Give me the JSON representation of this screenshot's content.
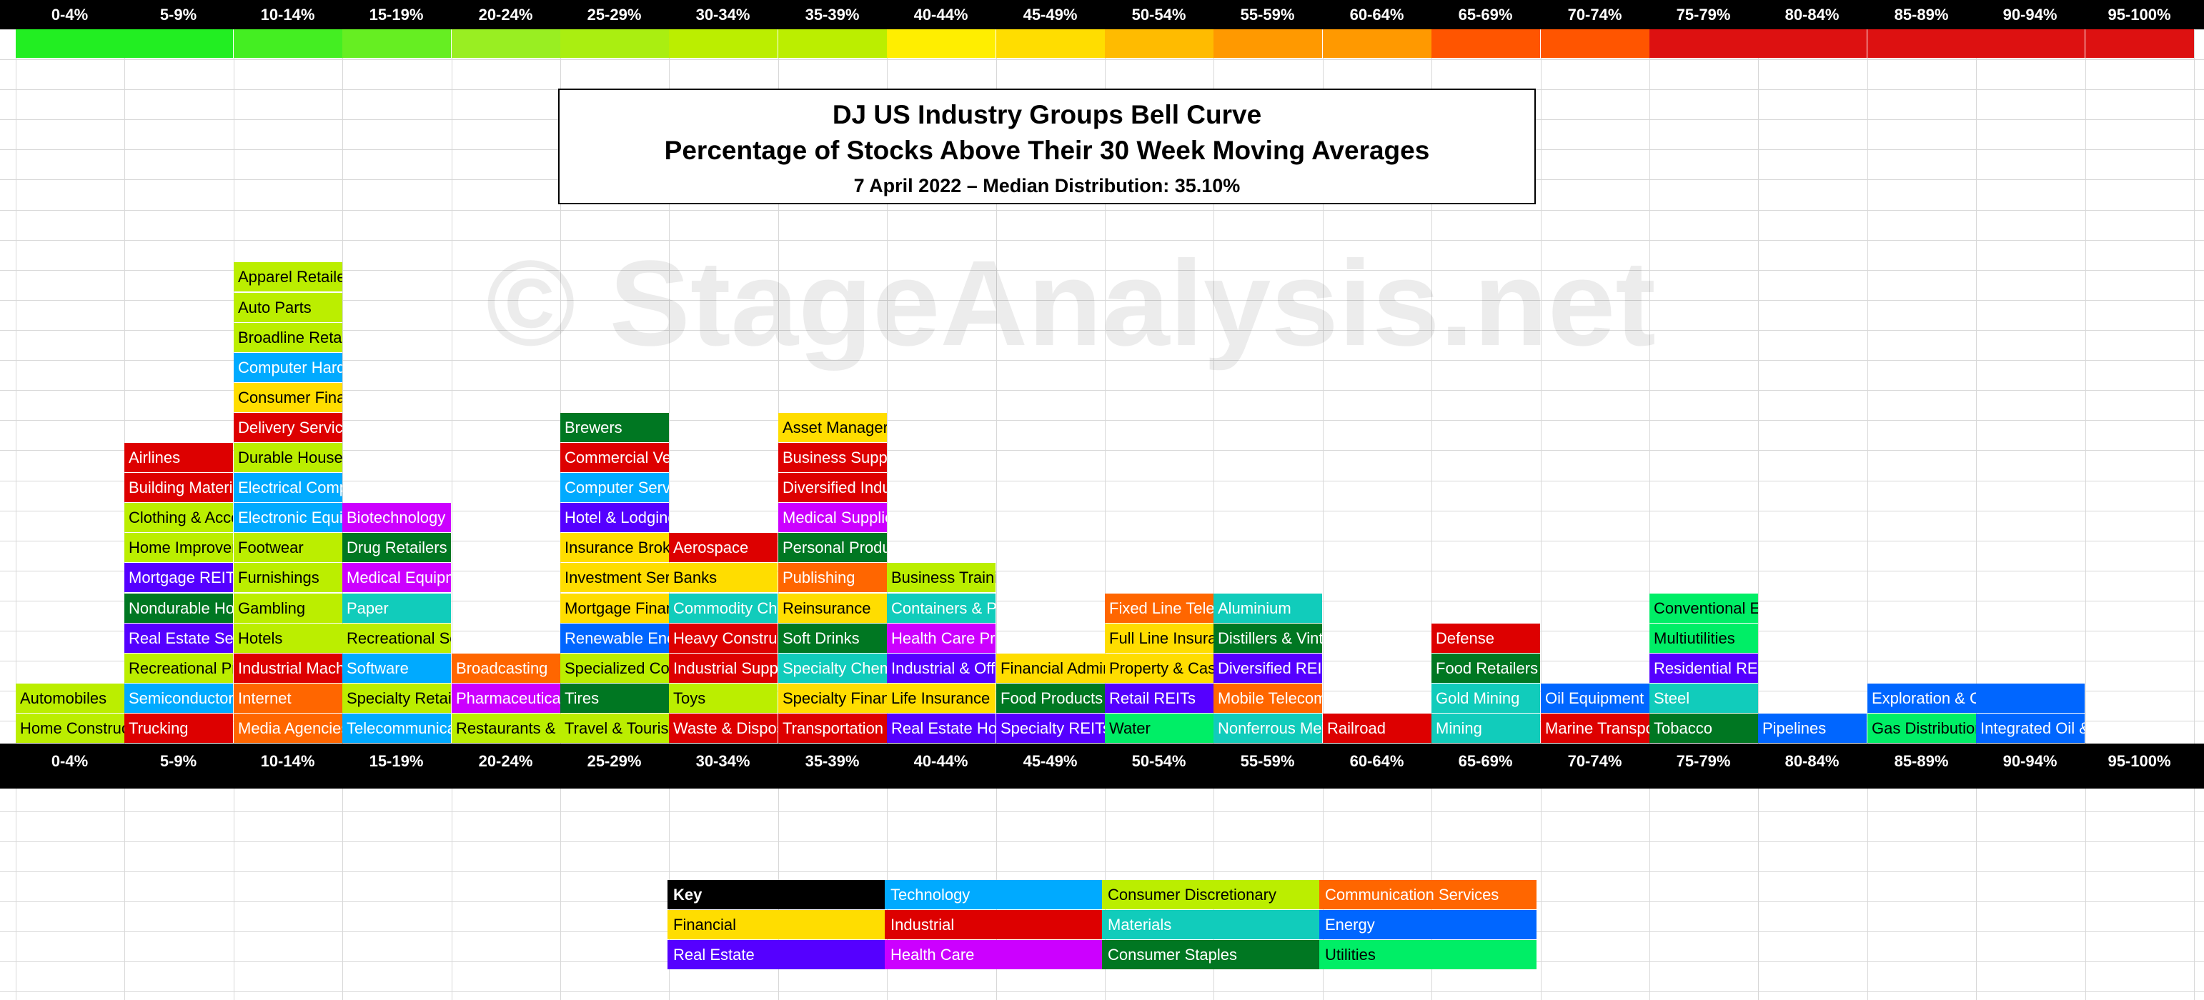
{
  "chart_data": {
    "type": "table",
    "title": "DJ US Industry Groups Bell Curve",
    "subtitle": "Percentage of Stocks Above Their 30 Week Moving Averages",
    "date_line": "7 April 2022 – Median Distribution: 35.10%",
    "watermark": "© StageAnalysis.net",
    "buckets": [
      "0-4%",
      "5-9%",
      "10-14%",
      "15-19%",
      "20-24%",
      "25-29%",
      "30-34%",
      "35-39%",
      "40-44%",
      "45-49%",
      "50-54%",
      "55-59%",
      "60-64%",
      "65-69%",
      "70-74%",
      "75-79%",
      "80-84%",
      "85-89%",
      "90-94%",
      "95-100%"
    ],
    "bucket_colors": [
      "#22ee22",
      "#22ee22",
      "#44ee22",
      "#66ee22",
      "#99ee22",
      "#aaee11",
      "#bbee00",
      "#bbee00",
      "#ffee00",
      "#ffdd00",
      "#ffbb00",
      "#ff9900",
      "#ff9900",
      "#ff5500",
      "#ff5500",
      "#dd1111",
      "#dd1111",
      "#dd1111",
      "#dd1111",
      "#dd1111"
    ],
    "sector_colors": {
      "Technology": "#00aaff",
      "Industrial": "#dd0000",
      "Consumer Discretionary": "#bbee00",
      "Communication Services": "#ff6600",
      "Financial": "#ffdd00",
      "Materials": "#11ccbb",
      "Energy": "#0066ff",
      "Real Estate": "#5500ff",
      "Health Care": "#cc00ff",
      "Consumer Staples": "#007722",
      "Utilities": "#00ee66"
    },
    "columns": [
      [
        {
          "name": "Automobiles",
          "sector": "Consumer Discretionary"
        },
        {
          "name": "Home Construction",
          "sector": "Consumer Discretionary"
        }
      ],
      [
        {
          "name": "Airlines",
          "sector": "Industrial"
        },
        {
          "name": "Building Materials",
          "sector": "Industrial"
        },
        {
          "name": "Clothing & Accessories",
          "sector": "Consumer Discretionary"
        },
        {
          "name": "Home Improvement",
          "sector": "Consumer Discretionary"
        },
        {
          "name": "Mortgage REITs",
          "sector": "Real Estate"
        },
        {
          "name": "Nondurable Household",
          "sector": "Consumer Staples"
        },
        {
          "name": "Real Estate Services",
          "sector": "Real Estate"
        },
        {
          "name": "Recreational Products",
          "sector": "Consumer Discretionary"
        },
        {
          "name": "Semiconductors",
          "sector": "Technology"
        },
        {
          "name": "Trucking",
          "sector": "Industrial"
        }
      ],
      [
        {
          "name": "Apparel Retailers",
          "sector": "Consumer Discretionary"
        },
        {
          "name": "Auto Parts",
          "sector": "Consumer Discretionary"
        },
        {
          "name": "Broadline Retailers",
          "sector": "Consumer Discretionary"
        },
        {
          "name": "Computer Hardware",
          "sector": "Technology"
        },
        {
          "name": "Consumer Finance",
          "sector": "Financial"
        },
        {
          "name": "Delivery Services",
          "sector": "Industrial"
        },
        {
          "name": "Durable Household",
          "sector": "Consumer Discretionary"
        },
        {
          "name": "Electrical Components",
          "sector": "Technology"
        },
        {
          "name": "Electronic Equipment",
          "sector": "Technology"
        },
        {
          "name": "Footwear",
          "sector": "Consumer Discretionary"
        },
        {
          "name": "Furnishings",
          "sector": "Consumer Discretionary"
        },
        {
          "name": "Gambling",
          "sector": "Consumer Discretionary"
        },
        {
          "name": "Hotels",
          "sector": "Consumer Discretionary"
        },
        {
          "name": "Industrial Machinery",
          "sector": "Industrial"
        },
        {
          "name": "Internet",
          "sector": "Communication Services"
        },
        {
          "name": "Media Agencies",
          "sector": "Communication Services"
        }
      ],
      [
        {
          "name": "Biotechnology",
          "sector": "Health Care"
        },
        {
          "name": "Drug Retailers",
          "sector": "Consumer Staples"
        },
        {
          "name": "Medical Equipment",
          "sector": "Health Care"
        },
        {
          "name": "Paper",
          "sector": "Materials"
        },
        {
          "name": "Recreational Services",
          "sector": "Consumer Discretionary"
        },
        {
          "name": "Software",
          "sector": "Technology"
        },
        {
          "name": "Specialty Retailers",
          "sector": "Consumer Discretionary"
        },
        {
          "name": "Telecommunications",
          "sector": "Technology"
        }
      ],
      [
        {
          "name": "Broadcasting",
          "sector": "Communication Services"
        },
        {
          "name": "Pharmaceuticals",
          "sector": "Health Care"
        },
        {
          "name": "Restaurants & Bars",
          "sector": "Consumer Discretionary"
        }
      ],
      [
        {
          "name": "Brewers",
          "sector": "Consumer Staples"
        },
        {
          "name": "Commercial Vehicles",
          "sector": "Industrial"
        },
        {
          "name": "Computer Services",
          "sector": "Technology"
        },
        {
          "name": "Hotel & Lodging",
          "sector": "Real Estate"
        },
        {
          "name": "Insurance Brokers",
          "sector": "Financial"
        },
        {
          "name": "Investment Services",
          "sector": "Financial"
        },
        {
          "name": "Mortgage Finance",
          "sector": "Financial"
        },
        {
          "name": "Renewable Energy",
          "sector": "Energy"
        },
        {
          "name": "Specialized Consumer",
          "sector": "Consumer Discretionary"
        },
        {
          "name": "Tires",
          "sector": "Consumer Staples"
        },
        {
          "name": "Travel & Tourism",
          "sector": "Consumer Discretionary"
        }
      ],
      [
        {
          "name": "Aerospace",
          "sector": "Industrial"
        },
        {
          "name": "Banks",
          "sector": "Financial"
        },
        {
          "name": "Commodity Chemicals",
          "sector": "Materials"
        },
        {
          "name": "Heavy Construction",
          "sector": "Industrial"
        },
        {
          "name": "Industrial Suppliers",
          "sector": "Industrial"
        },
        {
          "name": "Toys",
          "sector": "Consumer Discretionary"
        },
        {
          "name": "Waste & Disposal",
          "sector": "Industrial"
        }
      ],
      [
        {
          "name": "Asset Managers",
          "sector": "Financial"
        },
        {
          "name": "Business Support",
          "sector": "Industrial"
        },
        {
          "name": "Diversified Industrials",
          "sector": "Industrial"
        },
        {
          "name": "Medical Supplies",
          "sector": "Health Care"
        },
        {
          "name": "Personal Products",
          "sector": "Consumer Staples"
        },
        {
          "name": "Publishing",
          "sector": "Communication Services"
        },
        {
          "name": "Reinsurance",
          "sector": "Financial"
        },
        {
          "name": "Soft Drinks",
          "sector": "Consumer Staples"
        },
        {
          "name": "Specialty Chemicals",
          "sector": "Materials"
        },
        {
          "name": "Specialty Finance",
          "sector": "Financial"
        },
        {
          "name": "Transportation",
          "sector": "Industrial"
        }
      ],
      [
        {
          "name": "Business Training",
          "sector": "Consumer Discretionary"
        },
        {
          "name": "Containers & Packaging",
          "sector": "Materials"
        },
        {
          "name": "Health Care Providers",
          "sector": "Health Care"
        },
        {
          "name": "Industrial & Office",
          "sector": "Real Estate"
        },
        {
          "name": "Life Insurance",
          "sector": "Financial"
        },
        {
          "name": "Real Estate Holding",
          "sector": "Real Estate"
        }
      ],
      [
        {
          "name": "Financial Administration",
          "sector": "Financial"
        },
        {
          "name": "Food Products",
          "sector": "Consumer Staples"
        },
        {
          "name": "Specialty REITs",
          "sector": "Real Estate"
        }
      ],
      [
        {
          "name": "Fixed Line Telecom",
          "sector": "Communication Services"
        },
        {
          "name": "Full Line Insurance",
          "sector": "Financial"
        },
        {
          "name": "Property & Casualty",
          "sector": "Financial"
        },
        {
          "name": "Retail REITs",
          "sector": "Real Estate"
        },
        {
          "name": "Water",
          "sector": "Utilities"
        }
      ],
      [
        {
          "name": "Aluminium",
          "sector": "Materials"
        },
        {
          "name": "Distillers & Vintners",
          "sector": "Consumer Staples"
        },
        {
          "name": "Diversified REITs",
          "sector": "Real Estate"
        },
        {
          "name": "Mobile Telecom",
          "sector": "Communication Services"
        },
        {
          "name": "Nonferrous Metals",
          "sector": "Materials"
        }
      ],
      [
        {
          "name": "Railroad",
          "sector": "Industrial"
        }
      ],
      [
        {
          "name": "Defense",
          "sector": "Industrial"
        },
        {
          "name": "Food Retailers",
          "sector": "Consumer Staples"
        },
        {
          "name": "Gold Mining",
          "sector": "Materials"
        },
        {
          "name": "Mining",
          "sector": "Materials"
        }
      ],
      [
        {
          "name": "Oil Equipment",
          "sector": "Energy"
        },
        {
          "name": "Marine Transportation",
          "sector": "Industrial"
        }
      ],
      [
        {
          "name": "Conventional Electricity",
          "sector": "Utilities"
        },
        {
          "name": "Multiutilities",
          "sector": "Utilities"
        },
        {
          "name": "Residential REITs",
          "sector": "Real Estate"
        },
        {
          "name": "Steel",
          "sector": "Materials"
        },
        {
          "name": "Tobacco",
          "sector": "Consumer Staples"
        }
      ],
      [
        {
          "name": "Pipelines",
          "sector": "Energy"
        }
      ],
      [
        {
          "name": "Exploration & Coal",
          "sector": "Energy"
        },
        {
          "name": "Gas Distribution",
          "sector": "Utilities"
        }
      ],
      [
        {
          "name": "",
          "sector": "Energy"
        },
        {
          "name": "Integrated Oil & Gas",
          "sector": "Energy"
        }
      ],
      []
    ],
    "key": {
      "label": "Key",
      "cells": [
        [
          null,
          "Technology",
          "Consumer Discretionary",
          "Communication Services"
        ],
        [
          "Financial",
          "Industrial",
          "Materials",
          "Energy"
        ],
        [
          "Real Estate",
          "Health Care",
          "Consumer Staples",
          "Utilities"
        ]
      ]
    }
  }
}
